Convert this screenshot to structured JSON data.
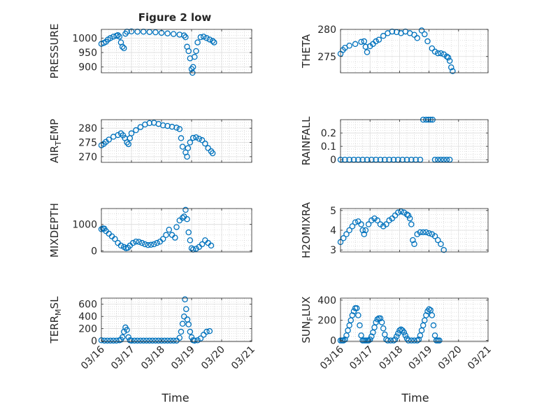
{
  "figure": {
    "title": "Figure 2 low",
    "xlabel": "Time",
    "colors": {
      "marker": "#0072BD",
      "grid": "#c8c8c8",
      "axis": "#262626"
    },
    "x_ticks": [
      "03/16",
      "03/17",
      "03/18",
      "03/19",
      "03/20",
      "03/21"
    ]
  },
  "chart_data": [
    {
      "type": "scatter",
      "ylabel": "PRESSURE",
      "ylim": [
        880,
        1030
      ],
      "yticks": [
        900,
        950,
        1000
      ],
      "grid": true,
      "marker": "open-circle",
      "x_domain_days": [
        0,
        5
      ],
      "points": [
        [
          0.0,
          980
        ],
        [
          0.08,
          983
        ],
        [
          0.15,
          987
        ],
        [
          0.22,
          995
        ],
        [
          0.3,
          1000
        ],
        [
          0.4,
          1005
        ],
        [
          0.5,
          1008
        ],
        [
          0.55,
          1010
        ],
        [
          0.6,
          1005
        ],
        [
          0.65,
          985
        ],
        [
          0.7,
          970
        ],
        [
          0.75,
          965
        ],
        [
          0.8,
          1015
        ],
        [
          0.85,
          1022
        ],
        [
          1.0,
          1023
        ],
        [
          1.2,
          1022
        ],
        [
          1.4,
          1022
        ],
        [
          1.6,
          1021
        ],
        [
          1.8,
          1020
        ],
        [
          2.0,
          1018
        ],
        [
          2.2,
          1016
        ],
        [
          2.4,
          1014
        ],
        [
          2.6,
          1012
        ],
        [
          2.75,
          1009
        ],
        [
          2.8,
          1003
        ],
        [
          2.85,
          970
        ],
        [
          2.9,
          955
        ],
        [
          2.95,
          930
        ],
        [
          3.0,
          893
        ],
        [
          3.03,
          880
        ],
        [
          3.05,
          900
        ],
        [
          3.1,
          935
        ],
        [
          3.15,
          955
        ],
        [
          3.2,
          985
        ],
        [
          3.3,
          1003
        ],
        [
          3.4,
          1005
        ],
        [
          3.5,
          1000
        ],
        [
          3.6,
          995
        ],
        [
          3.7,
          990
        ],
        [
          3.75,
          985
        ]
      ]
    },
    {
      "type": "scatter",
      "ylabel": "THETA",
      "ylim": [
        272,
        280
      ],
      "yticks": [
        275,
        280
      ],
      "grid": true,
      "marker": "open-circle",
      "x_domain_days": [
        0,
        5
      ],
      "points": [
        [
          0.0,
          275.5
        ],
        [
          0.08,
          276.2
        ],
        [
          0.15,
          276.6
        ],
        [
          0.3,
          277.0
        ],
        [
          0.5,
          277.3
        ],
        [
          0.7,
          277.7
        ],
        [
          0.8,
          277.8
        ],
        [
          0.85,
          276.8
        ],
        [
          0.9,
          275.8
        ],
        [
          1.0,
          276.9
        ],
        [
          1.1,
          277.3
        ],
        [
          1.2,
          277.8
        ],
        [
          1.3,
          278.1
        ],
        [
          1.45,
          278.8
        ],
        [
          1.6,
          279.3
        ],
        [
          1.75,
          279.6
        ],
        [
          1.9,
          279.5
        ],
        [
          2.05,
          279.3
        ],
        [
          2.2,
          279.6
        ],
        [
          2.35,
          279.3
        ],
        [
          2.5,
          279.0
        ],
        [
          2.6,
          278.4
        ],
        [
          2.75,
          279.8
        ],
        [
          2.85,
          279.1
        ],
        [
          2.95,
          277.8
        ],
        [
          3.1,
          276.5
        ],
        [
          3.2,
          275.9
        ],
        [
          3.3,
          275.6
        ],
        [
          3.4,
          275.6
        ],
        [
          3.5,
          275.4
        ],
        [
          3.6,
          275.0
        ],
        [
          3.65,
          274.8
        ],
        [
          3.7,
          274.2
        ],
        [
          3.75,
          273.0
        ],
        [
          3.8,
          272.3
        ]
      ]
    },
    {
      "type": "scatter",
      "ylabel": "AIR_TEMP",
      "ylim": [
        268,
        283
      ],
      "yticks": [
        270,
        275,
        280
      ],
      "grid": true,
      "marker": "open-circle",
      "x_domain_days": [
        0,
        5
      ],
      "points": [
        [
          0.0,
          274.0
        ],
        [
          0.08,
          274.5
        ],
        [
          0.15,
          275.2
        ],
        [
          0.25,
          276.0
        ],
        [
          0.4,
          277.0
        ],
        [
          0.55,
          277.6
        ],
        [
          0.65,
          278.2
        ],
        [
          0.72,
          277.5
        ],
        [
          0.78,
          276.5
        ],
        [
          0.85,
          275.0
        ],
        [
          0.9,
          274.4
        ],
        [
          0.95,
          276.5
        ],
        [
          1.0,
          278.2
        ],
        [
          1.15,
          279.3
        ],
        [
          1.3,
          280.4
        ],
        [
          1.45,
          281.3
        ],
        [
          1.6,
          281.8
        ],
        [
          1.75,
          281.9
        ],
        [
          1.9,
          281.5
        ],
        [
          2.05,
          281.0
        ],
        [
          2.2,
          280.8
        ],
        [
          2.35,
          280.5
        ],
        [
          2.5,
          280.2
        ],
        [
          2.6,
          279.7
        ],
        [
          2.65,
          276.5
        ],
        [
          2.7,
          273.5
        ],
        [
          2.8,
          271.5
        ],
        [
          2.85,
          270.0
        ],
        [
          2.88,
          273.0
        ],
        [
          2.95,
          275.0
        ],
        [
          3.05,
          276.6
        ],
        [
          3.15,
          276.8
        ],
        [
          3.25,
          276.3
        ],
        [
          3.35,
          275.8
        ],
        [
          3.45,
          274.6
        ],
        [
          3.55,
          273.0
        ],
        [
          3.65,
          271.9
        ],
        [
          3.7,
          271.2
        ]
      ]
    },
    {
      "type": "scatter",
      "ylabel": "RAINFALL",
      "ylim": [
        -0.02,
        0.3
      ],
      "yticks": [
        0,
        0.1,
        0.2
      ],
      "grid": true,
      "marker": "open-circle",
      "x_domain_days": [
        0,
        5
      ],
      "points": [
        [
          0.0,
          0
        ],
        [
          0.15,
          0
        ],
        [
          0.3,
          0
        ],
        [
          0.45,
          0
        ],
        [
          0.6,
          0
        ],
        [
          0.75,
          0
        ],
        [
          0.9,
          0
        ],
        [
          1.05,
          0
        ],
        [
          1.2,
          0
        ],
        [
          1.35,
          0
        ],
        [
          1.5,
          0
        ],
        [
          1.65,
          0
        ],
        [
          1.8,
          0
        ],
        [
          1.95,
          0
        ],
        [
          2.1,
          0
        ],
        [
          2.25,
          0
        ],
        [
          2.4,
          0
        ],
        [
          2.55,
          0
        ],
        [
          2.7,
          0
        ],
        [
          2.8,
          0.3
        ],
        [
          2.9,
          0.3
        ],
        [
          2.98,
          0.3
        ],
        [
          3.05,
          0.3
        ],
        [
          3.12,
          0.3
        ],
        [
          3.2,
          0
        ],
        [
          3.3,
          0
        ],
        [
          3.4,
          0
        ],
        [
          3.5,
          0
        ],
        [
          3.6,
          0
        ],
        [
          3.7,
          0
        ]
      ]
    },
    {
      "type": "scatter",
      "ylabel": "MIXDEPTH",
      "ylim": [
        -40,
        1600
      ],
      "yticks": [
        0,
        1000
      ],
      "grid": true,
      "marker": "open-circle",
      "x_domain_days": [
        0,
        5
      ],
      "points": [
        [
          0.0,
          820
        ],
        [
          0.05,
          850
        ],
        [
          0.1,
          840
        ],
        [
          0.15,
          750
        ],
        [
          0.25,
          650
        ],
        [
          0.35,
          550
        ],
        [
          0.45,
          450
        ],
        [
          0.55,
          300
        ],
        [
          0.65,
          200
        ],
        [
          0.75,
          150
        ],
        [
          0.82,
          100
        ],
        [
          0.88,
          120
        ],
        [
          0.95,
          200
        ],
        [
          1.05,
          300
        ],
        [
          1.15,
          350
        ],
        [
          1.25,
          340
        ],
        [
          1.35,
          300
        ],
        [
          1.45,
          250
        ],
        [
          1.55,
          220
        ],
        [
          1.65,
          230
        ],
        [
          1.75,
          250
        ],
        [
          1.85,
          300
        ],
        [
          1.95,
          350
        ],
        [
          2.05,
          450
        ],
        [
          2.15,
          600
        ],
        [
          2.25,
          800
        ],
        [
          2.35,
          600
        ],
        [
          2.45,
          500
        ],
        [
          2.5,
          900
        ],
        [
          2.6,
          1150
        ],
        [
          2.7,
          1250
        ],
        [
          2.75,
          1300
        ],
        [
          2.8,
          1550
        ],
        [
          2.85,
          1200
        ],
        [
          2.9,
          700
        ],
        [
          2.95,
          400
        ],
        [
          3.0,
          100
        ],
        [
          3.05,
          50
        ],
        [
          3.15,
          80
        ],
        [
          3.25,
          150
        ],
        [
          3.35,
          250
        ],
        [
          3.45,
          400
        ],
        [
          3.55,
          300
        ],
        [
          3.65,
          200
        ]
      ]
    },
    {
      "type": "scatter",
      "ylabel": "H2OMIXRA",
      "ylim": [
        2.9,
        5.1
      ],
      "yticks": [
        3,
        4,
        5
      ],
      "grid": true,
      "marker": "open-circle",
      "x_domain_days": [
        0,
        5
      ],
      "points": [
        [
          0.0,
          3.4
        ],
        [
          0.1,
          3.6
        ],
        [
          0.2,
          3.8
        ],
        [
          0.3,
          4.0
        ],
        [
          0.4,
          4.2
        ],
        [
          0.5,
          4.4
        ],
        [
          0.6,
          4.45
        ],
        [
          0.7,
          4.3
        ],
        [
          0.75,
          4.0
        ],
        [
          0.8,
          3.8
        ],
        [
          0.85,
          4.0
        ],
        [
          0.95,
          4.3
        ],
        [
          1.05,
          4.5
        ],
        [
          1.15,
          4.6
        ],
        [
          1.25,
          4.5
        ],
        [
          1.35,
          4.3
        ],
        [
          1.45,
          4.2
        ],
        [
          1.55,
          4.3
        ],
        [
          1.65,
          4.5
        ],
        [
          1.75,
          4.6
        ],
        [
          1.85,
          4.75
        ],
        [
          1.95,
          4.9
        ],
        [
          2.05,
          4.95
        ],
        [
          2.15,
          4.9
        ],
        [
          2.25,
          4.8
        ],
        [
          2.3,
          4.75
        ],
        [
          2.35,
          4.6
        ],
        [
          2.4,
          4.3
        ],
        [
          2.45,
          3.5
        ],
        [
          2.5,
          3.3
        ],
        [
          2.6,
          3.8
        ],
        [
          2.7,
          3.9
        ],
        [
          2.8,
          3.9
        ],
        [
          2.9,
          3.9
        ],
        [
          3.0,
          3.85
        ],
        [
          3.1,
          3.8
        ],
        [
          3.2,
          3.7
        ],
        [
          3.3,
          3.5
        ],
        [
          3.4,
          3.3
        ],
        [
          3.5,
          3.0
        ]
      ]
    },
    {
      "type": "scatter",
      "ylabel": "TERR_MSL",
      "ylim": [
        -10,
        700
      ],
      "yticks": [
        0,
        200,
        400,
        600
      ],
      "grid": true,
      "marker": "open-circle",
      "x_domain_days": [
        0,
        5
      ],
      "points": [
        [
          0.0,
          10
        ],
        [
          0.1,
          5
        ],
        [
          0.2,
          5
        ],
        [
          0.3,
          5
        ],
        [
          0.4,
          5
        ],
        [
          0.5,
          5
        ],
        [
          0.6,
          10
        ],
        [
          0.65,
          20
        ],
        [
          0.7,
          60
        ],
        [
          0.75,
          150
        ],
        [
          0.8,
          220
        ],
        [
          0.85,
          180
        ],
        [
          0.9,
          60
        ],
        [
          0.95,
          10
        ],
        [
          1.0,
          5
        ],
        [
          1.1,
          5
        ],
        [
          1.2,
          5
        ],
        [
          1.3,
          5
        ],
        [
          1.4,
          5
        ],
        [
          1.5,
          5
        ],
        [
          1.6,
          5
        ],
        [
          1.7,
          5
        ],
        [
          1.8,
          5
        ],
        [
          1.9,
          5
        ],
        [
          2.0,
          5
        ],
        [
          2.1,
          5
        ],
        [
          2.2,
          5
        ],
        [
          2.3,
          5
        ],
        [
          2.4,
          5
        ],
        [
          2.5,
          5
        ],
        [
          2.6,
          50
        ],
        [
          2.65,
          150
        ],
        [
          2.7,
          280
        ],
        [
          2.75,
          400
        ],
        [
          2.78,
          680
        ],
        [
          2.82,
          520
        ],
        [
          2.86,
          350
        ],
        [
          2.9,
          270
        ],
        [
          2.95,
          150
        ],
        [
          3.0,
          60
        ],
        [
          3.05,
          10
        ],
        [
          3.1,
          5
        ],
        [
          3.2,
          10
        ],
        [
          3.3,
          40
        ],
        [
          3.4,
          100
        ],
        [
          3.5,
          150
        ],
        [
          3.6,
          160
        ]
      ]
    },
    {
      "type": "scatter",
      "ylabel": "SUN_FLUX",
      "ylim": [
        -10,
        420
      ],
      "yticks": [
        0,
        200,
        400
      ],
      "grid": true,
      "marker": "open-circle",
      "x_domain_days": [
        0,
        5
      ],
      "points": [
        [
          0.0,
          0
        ],
        [
          0.05,
          0
        ],
        [
          0.1,
          0
        ],
        [
          0.15,
          10
        ],
        [
          0.2,
          50
        ],
        [
          0.25,
          100
        ],
        [
          0.3,
          150
        ],
        [
          0.35,
          200
        ],
        [
          0.4,
          250
        ],
        [
          0.45,
          290
        ],
        [
          0.5,
          320
        ],
        [
          0.55,
          320
        ],
        [
          0.6,
          250
        ],
        [
          0.65,
          150
        ],
        [
          0.7,
          50
        ],
        [
          0.75,
          0
        ],
        [
          0.8,
          0
        ],
        [
          0.85,
          0
        ],
        [
          0.9,
          0
        ],
        [
          0.95,
          0
        ],
        [
          1.0,
          10
        ],
        [
          1.05,
          40
        ],
        [
          1.1,
          80
        ],
        [
          1.15,
          130
        ],
        [
          1.2,
          180
        ],
        [
          1.25,
          210
        ],
        [
          1.3,
          220
        ],
        [
          1.35,
          220
        ],
        [
          1.4,
          180
        ],
        [
          1.45,
          120
        ],
        [
          1.5,
          60
        ],
        [
          1.55,
          10
        ],
        [
          1.6,
          0
        ],
        [
          1.7,
          0
        ],
        [
          1.8,
          0
        ],
        [
          1.85,
          10
        ],
        [
          1.9,
          40
        ],
        [
          1.95,
          70
        ],
        [
          2.0,
          100
        ],
        [
          2.05,
          110
        ],
        [
          2.1,
          100
        ],
        [
          2.15,
          80
        ],
        [
          2.2,
          50
        ],
        [
          2.25,
          20
        ],
        [
          2.3,
          0
        ],
        [
          2.4,
          0
        ],
        [
          2.5,
          0
        ],
        [
          2.6,
          0
        ],
        [
          2.65,
          10
        ],
        [
          2.7,
          50
        ],
        [
          2.75,
          100
        ],
        [
          2.8,
          150
        ],
        [
          2.85,
          200
        ],
        [
          2.9,
          250
        ],
        [
          2.95,
          290
        ],
        [
          3.0,
          310
        ],
        [
          3.05,
          300
        ],
        [
          3.1,
          250
        ],
        [
          3.15,
          150
        ],
        [
          3.2,
          50
        ],
        [
          3.25,
          0
        ],
        [
          3.3,
          0
        ],
        [
          3.35,
          0
        ]
      ]
    }
  ]
}
